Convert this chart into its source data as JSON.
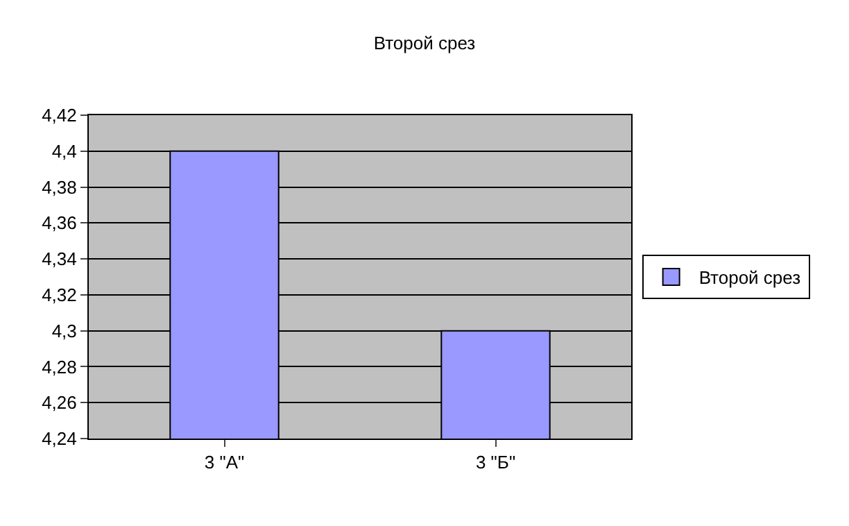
{
  "chart_data": {
    "type": "bar",
    "title": "Второй срез",
    "categories": [
      "3 \"А\"",
      "3 \"Б\""
    ],
    "series": [
      {
        "name": "Второй срез",
        "color": "#9999ff",
        "values": [
          4.4,
          4.3
        ]
      }
    ],
    "ylim": [
      4.24,
      4.42
    ],
    "yticks": [
      {
        "value": 4.24,
        "label": "4,24"
      },
      {
        "value": 4.26,
        "label": "4,26"
      },
      {
        "value": 4.28,
        "label": "4,28"
      },
      {
        "value": 4.3,
        "label": "4,3"
      },
      {
        "value": 4.32,
        "label": "4,32"
      },
      {
        "value": 4.34,
        "label": "4,34"
      },
      {
        "value": 4.36,
        "label": "4,36"
      },
      {
        "value": 4.38,
        "label": "4,38"
      },
      {
        "value": 4.4,
        "label": "4,4"
      },
      {
        "value": 4.42,
        "label": "4,42"
      }
    ],
    "grid": "y",
    "legend": "right"
  }
}
